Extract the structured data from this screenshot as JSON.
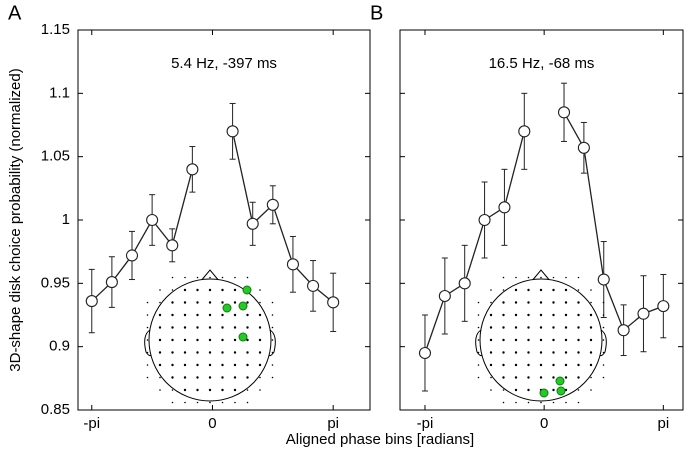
{
  "chart_data": [
    {
      "type": "line",
      "panel": "A",
      "annotation": "5.4 Hz, -397 ms",
      "ylabel": "3D-shape disk choice probability (normalized)",
      "xlabel": "Aligned phase bins [radians]",
      "xlim": [
        -3.5,
        4.1
      ],
      "ylim": [
        0.85,
        1.15
      ],
      "xticks": [
        {
          "value": -3.1416,
          "label": "-pi"
        },
        0,
        {
          "value": 3.1416,
          "label": "pi"
        }
      ],
      "yticks": [
        0.85,
        0.9,
        0.95,
        1,
        1.05,
        1.1,
        1.15
      ],
      "x": [
        -3.1416,
        -2.618,
        -2.0944,
        -1.5708,
        -1.0472,
        -0.5236,
        0,
        0.5236,
        1.0472,
        1.5708,
        2.0944,
        2.618,
        3.1416
      ],
      "series": [
        {
          "color": "#222222",
          "values": [
            0.936,
            0.951,
            0.972,
            1.0,
            0.98,
            1.04,
            null,
            1.07,
            0.997,
            1.012,
            0.965,
            0.948,
            0.935
          ],
          "errors": [
            0.025,
            0.02,
            0.019,
            0.02,
            0.013,
            0.018,
            null,
            0.022,
            0.017,
            0.015,
            0.022,
            0.02,
            0.023
          ]
        }
      ]
    },
    {
      "type": "line",
      "panel": "B",
      "annotation": "16.5 Hz, -68 ms",
      "xlim": [
        -3.8,
        3.66
      ],
      "ylim": [
        0.85,
        1.15
      ],
      "xticks": [
        {
          "value": -3.1416,
          "label": "-pi"
        },
        0,
        {
          "value": 3.1416,
          "label": "pi"
        }
      ],
      "yticks": [
        0.85,
        0.9,
        0.95,
        1,
        1.05,
        1.1,
        1.15
      ],
      "x": [
        -3.1416,
        -2.618,
        -2.0944,
        -1.5708,
        -1.0472,
        -0.5236,
        0,
        0.5236,
        1.0472,
        1.5708,
        2.0944,
        2.618,
        3.1416
      ],
      "series": [
        {
          "color": "#222222",
          "values": [
            0.895,
            0.94,
            0.95,
            1.0,
            1.01,
            1.07,
            null,
            1.085,
            1.057,
            0.953,
            0.913,
            0.926,
            0.932
          ],
          "errors": [
            0.03,
            0.03,
            0.03,
            0.03,
            0.03,
            0.03,
            null,
            0.023,
            0.02,
            0.03,
            0.02,
            0.03,
            0.025
          ]
        }
      ]
    }
  ]
}
